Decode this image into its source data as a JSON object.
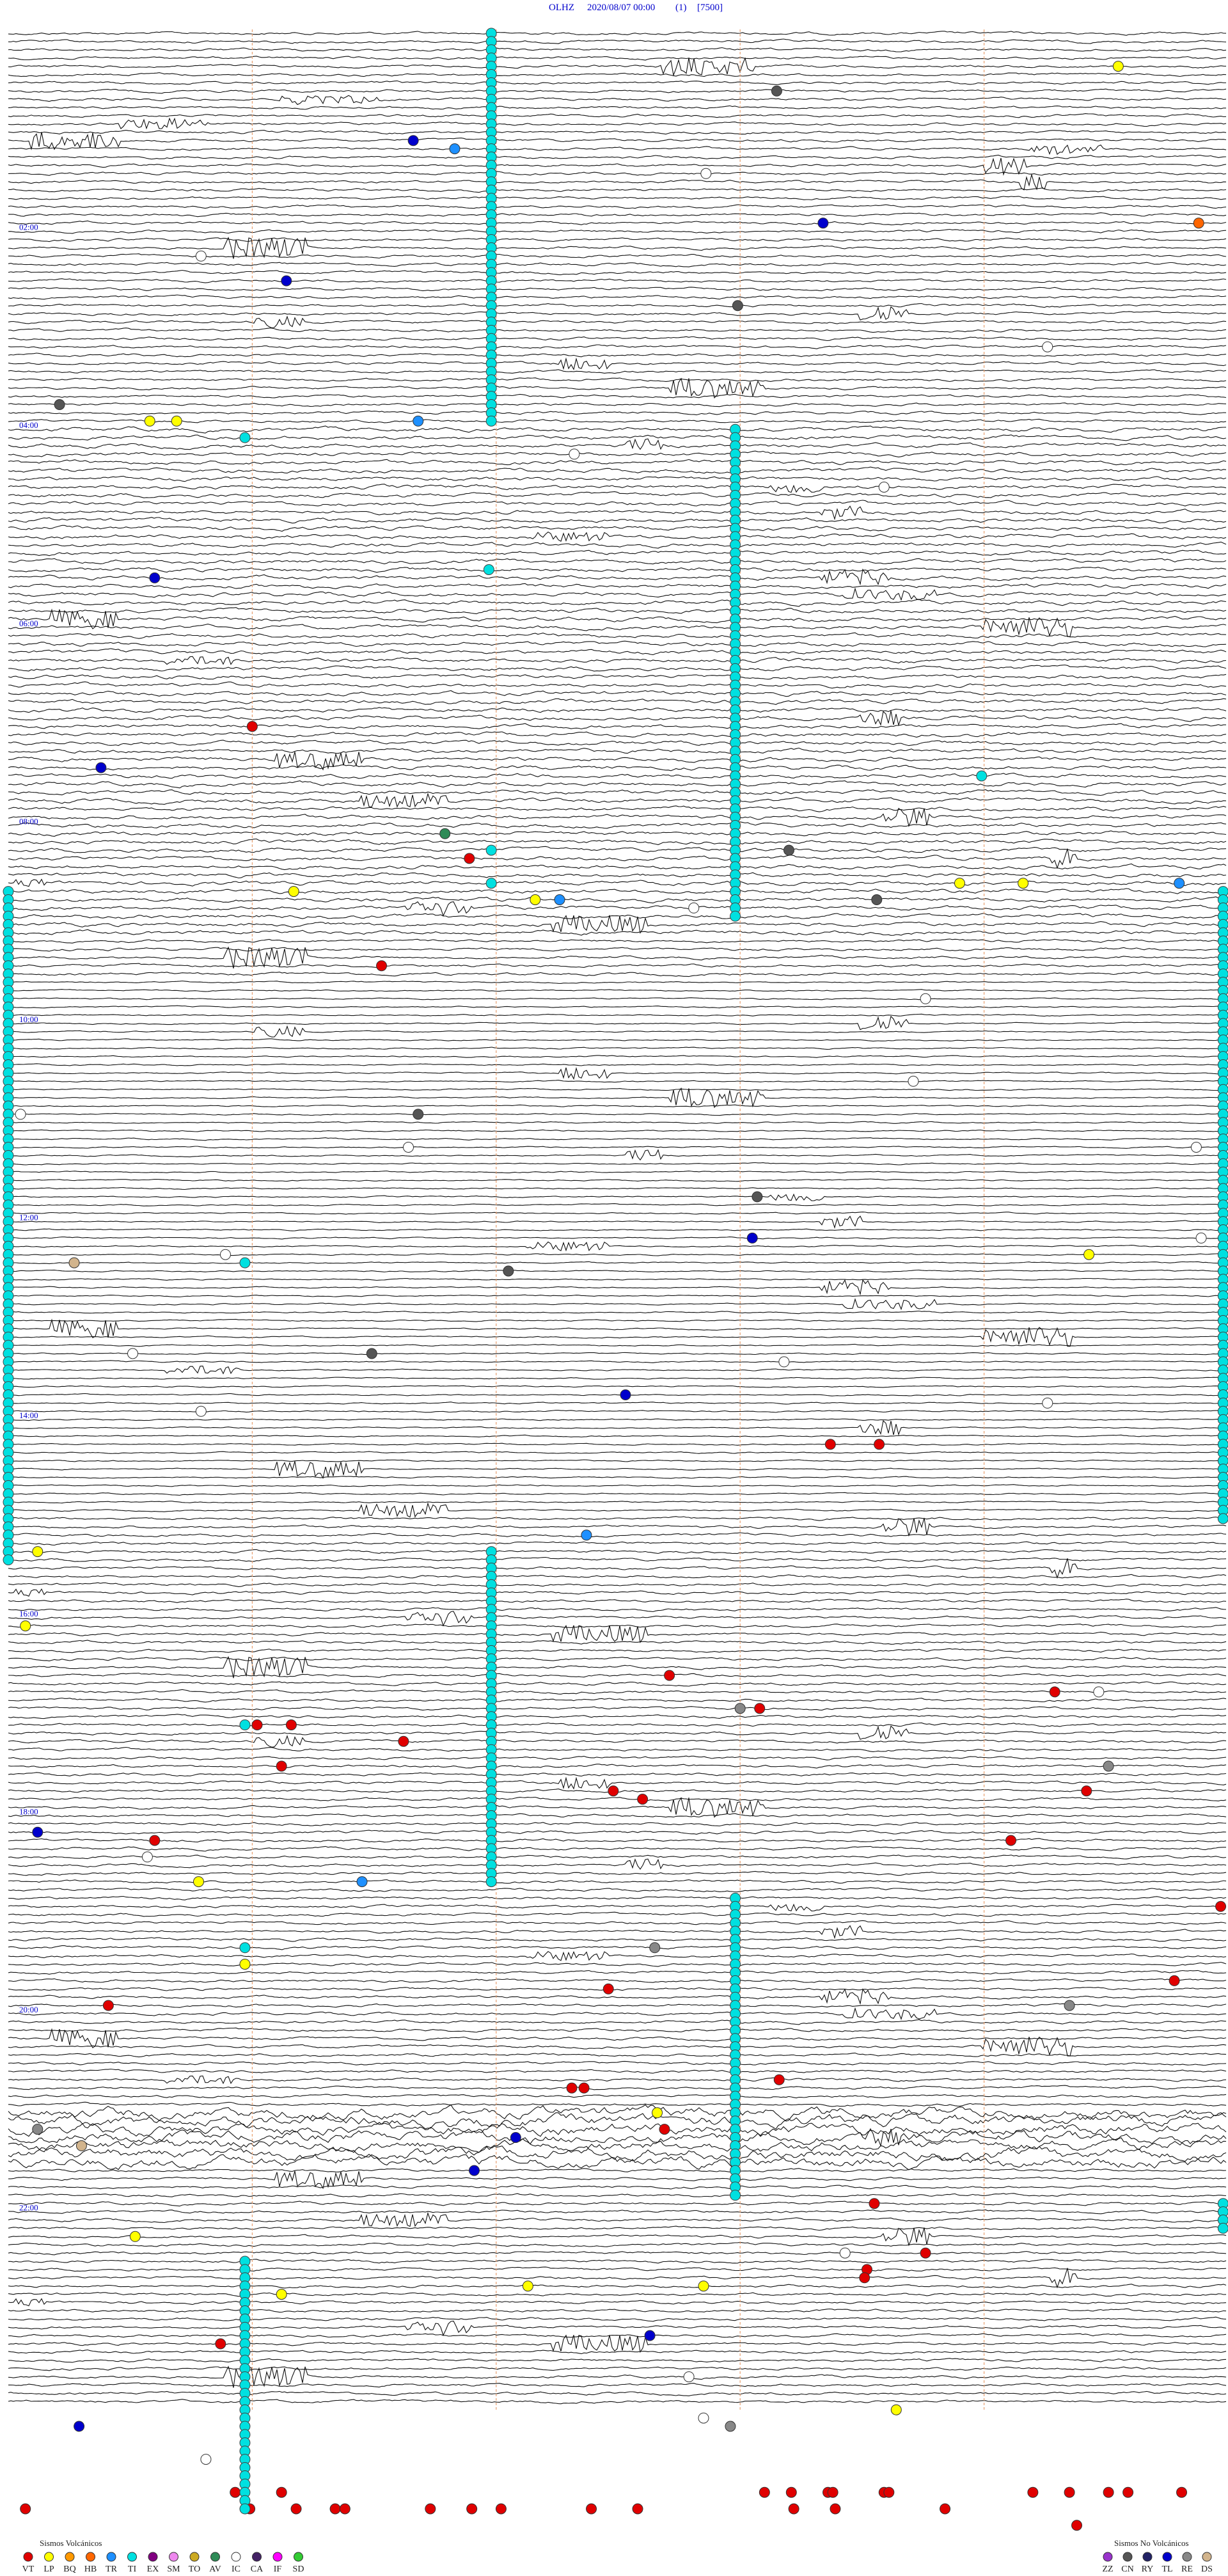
{
  "chart_data": {
    "type": "helicorder",
    "station": "OLHZ",
    "start": "2020/08/07 00:00",
    "channel": "(1)",
    "scale": "[7500]",
    "hour_labels": [
      "02:00",
      "04:00",
      "06:00",
      "08:00",
      "10:00",
      "12:00",
      "14:00",
      "16:00",
      "18:00",
      "20:00",
      "22:00"
    ],
    "volcanic": {
      "title": "Sismos Volcánicos",
      "codes": [
        {
          "code": "VT",
          "color": "#e00000",
          "events": [
            [
              84,
              1.0
            ],
            [
              100,
              1.89
            ],
            [
              113,
              1.53
            ],
            [
              171,
              3.37
            ],
            [
              171,
              3.57
            ],
            [
              199,
              2.71
            ],
            [
              201,
              4.29
            ],
            [
              203,
              3.08
            ],
            [
              205,
              1.02
            ],
            [
              205,
              1.16
            ],
            [
              207,
              1.62
            ],
            [
              210,
              1.12
            ],
            [
              213,
              2.48
            ],
            [
              214,
              2.6
            ],
            [
              213,
              4.42
            ],
            [
              219,
              0.6
            ],
            [
              219,
              4.11
            ],
            [
              227,
              4.97
            ],
            [
              236,
              4.78
            ],
            [
              237,
              2.46
            ],
            [
              239,
              0.41
            ],
            [
              248,
              3.16
            ],
            [
              249,
              2.31
            ],
            [
              249,
              2.36
            ],
            [
              254,
              2.69
            ],
            [
              263,
              3.55
            ],
            [
              269,
              3.76
            ],
            [
              271,
              3.52
            ],
            [
              272,
              3.51
            ],
            [
              280,
              0.87
            ],
            [
              298,
              0.93
            ],
            [
              298,
              1.12
            ],
            [
              298,
              3.1
            ],
            [
              298,
              3.21
            ],
            [
              298,
              3.36
            ],
            [
              298,
              3.38
            ],
            [
              298,
              3.59
            ],
            [
              298,
              3.61
            ],
            [
              298,
              4.2
            ],
            [
              298,
              4.35
            ],
            [
              298,
              4.51
            ],
            [
              298,
              4.59
            ],
            [
              298,
              4.81
            ],
            [
              300,
              0.07
            ],
            [
              300,
              0.99
            ],
            [
              300,
              1.18
            ],
            [
              300,
              1.34
            ],
            [
              300,
              1.38
            ],
            [
              300,
              1.73
            ],
            [
              300,
              1.9
            ],
            [
              300,
              2.02
            ],
            [
              300,
              2.39
            ],
            [
              300,
              2.58
            ],
            [
              300,
              3.22
            ],
            [
              300,
              3.39
            ],
            [
              300,
              3.84
            ],
            [
              302,
              4.38
            ]
          ]
        },
        {
          "code": "LP",
          "color": "#ffff00",
          "events": [
            [
              4,
              4.55
            ],
            [
              47,
              0.58
            ],
            [
              47,
              0.69
            ],
            [
              104,
              1.17
            ],
            [
              105,
              2.16
            ],
            [
              103,
              3.9
            ],
            [
              103,
              4.16
            ],
            [
              184,
              0.12
            ],
            [
              193,
              0.07
            ],
            [
              148,
              4.43
            ],
            [
              224,
              0.78
            ],
            [
              234,
              0.97
            ],
            [
              252,
              2.66
            ],
            [
              267,
              0.52
            ],
            [
              273,
              2.13
            ],
            [
              273,
              2.85
            ],
            [
              274,
              1.12
            ],
            [
              288,
              3.64
            ]
          ]
        },
        {
          "code": "BQ",
          "color": "#ff9900",
          "events": []
        },
        {
          "code": "HB",
          "color": "#ff6600",
          "events": [
            [
              23,
              4.88
            ]
          ]
        },
        {
          "code": "TR",
          "color": "#1e90ff",
          "events": [
            [
              14,
              1.83
            ],
            [
              47,
              1.68
            ],
            [
              105,
              2.26
            ],
            [
              103,
              4.8
            ],
            [
              182,
              2.37
            ],
            [
              224,
              1.45
            ]
          ]
        },
        {
          "code": "TI",
          "color": "#00e0e0",
          "spans": [
            [
              0,
              47,
              1.98
            ],
            [
              48,
              107,
              2.98
            ],
            [
              49,
              49,
              0.97
            ],
            [
              65,
              65,
              1.97
            ],
            [
              99,
              99,
              1.98
            ],
            [
              103,
              103,
              1.98
            ],
            [
              104,
              180,
              4.98
            ],
            [
              104,
              185,
              0.0
            ],
            [
              149,
              149,
              0.97
            ],
            [
              90,
              90,
              3.99
            ],
            [
              184,
              224,
              1.98
            ],
            [
              205,
              205,
              0.97
            ],
            [
              226,
              262,
              2.98
            ],
            [
              232,
              232,
              0.97
            ],
            [
              263,
              266,
              4.98
            ],
            [
              270,
              300,
              0.97
            ]
          ]
        },
        {
          "code": "EX",
          "color": "#800080",
          "events": []
        },
        {
          "code": "SM",
          "color": "#ee88ee",
          "events": []
        },
        {
          "code": "TO",
          "color": "#ccaa22",
          "events": []
        },
        {
          "code": "AV",
          "color": "#2e8b57",
          "events": [
            [
              97,
              1.79
            ]
          ]
        },
        {
          "code": "IC",
          "color": "#ffffff",
          "events": [
            [
              17,
              2.86
            ],
            [
              27,
              0.79
            ],
            [
              38,
              4.26
            ],
            [
              51,
              2.32
            ],
            [
              55,
              3.59
            ],
            [
              106,
              2.81
            ],
            [
              117,
              3.76
            ],
            [
              127,
              3.71
            ],
            [
              131,
              0.05
            ],
            [
              135,
              1.64
            ],
            [
              135,
              4.87
            ],
            [
              146,
              4.89
            ],
            [
              148,
              0.89
            ],
            [
              160,
              0.51
            ],
            [
              161,
              3.18
            ],
            [
              166,
              4.26
            ],
            [
              167,
              0.79
            ],
            [
              201,
              4.47
            ],
            [
              221,
              0.57
            ],
            [
              269,
              3.43
            ],
            [
              284,
              2.79
            ],
            [
              289,
              2.85
            ],
            [
              294,
              0.81
            ]
          ]
        },
        {
          "code": "CA",
          "color": "#442266",
          "events": []
        },
        {
          "code": "IF",
          "color": "#ff00ff",
          "events": []
        },
        {
          "code": "SD",
          "color": "#33cc33",
          "events": []
        }
      ]
    },
    "non_volcanic": {
      "title": "Sismos No Volcánicos",
      "codes": [
        {
          "code": "ZZ",
          "color": "#9933cc",
          "events": []
        },
        {
          "code": "CN",
          "color": "#555555",
          "events": [
            [
              7,
              3.15
            ],
            [
              33,
              2.99
            ],
            [
              45,
              0.21
            ],
            [
              99,
              3.2
            ],
            [
              105,
              3.56
            ],
            [
              131,
              1.68
            ],
            [
              141,
              3.07
            ],
            [
              150,
              2.05
            ],
            [
              160,
              1.49
            ]
          ]
        },
        {
          "code": "RY",
          "color": "#222266",
          "events": []
        },
        {
          "code": "TL",
          "color": "#0000cc",
          "events": [
            [
              13,
              1.66
            ],
            [
              23,
              3.34
            ],
            [
              30,
              1.14
            ],
            [
              66,
              0.6
            ],
            [
              89,
              0.38
            ],
            [
              146,
              3.05
            ],
            [
              165,
              2.53
            ],
            [
              218,
              0.12
            ],
            [
              255,
              2.08
            ],
            [
              259,
              1.91
            ],
            [
              279,
              2.63
            ],
            [
              290,
              0.29
            ]
          ]
        },
        {
          "code": "RE",
          "color": "#888888",
          "events": [
            [
              203,
              3.0
            ],
            [
              210,
              4.51
            ],
            [
              232,
              2.65
            ],
            [
              239,
              4.35
            ],
            [
              254,
              0.12
            ],
            [
              290,
              2.96
            ]
          ]
        },
        {
          "code": "DS",
          "color": "#d2b48c",
          "events": [
            [
              149,
              0.27
            ],
            [
              256,
              0.3
            ]
          ]
        }
      ]
    }
  }
}
